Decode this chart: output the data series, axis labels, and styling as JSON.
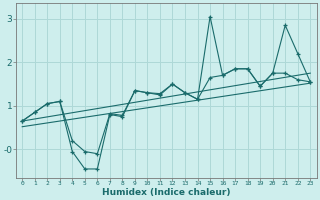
{
  "xlabel": "Humidex (Indice chaleur)",
  "bg_color": "#ceeeed",
  "line_color": "#1a6b6b",
  "grid_color": "#aed8d7",
  "xlim": [
    -0.5,
    23.5
  ],
  "ylim": [
    -0.65,
    3.35
  ],
  "xticks": [
    0,
    1,
    2,
    3,
    4,
    5,
    6,
    7,
    8,
    9,
    10,
    11,
    12,
    13,
    14,
    15,
    16,
    17,
    18,
    19,
    20,
    21,
    22,
    23
  ],
  "yticks": [
    0.0,
    1.0,
    2.0,
    3.0
  ],
  "ytick_labels": [
    "-0",
    "1",
    "2",
    "3"
  ],
  "line1_x": [
    0,
    1,
    2,
    3,
    4,
    5,
    6,
    7,
    8,
    9,
    10,
    11,
    12,
    13,
    14,
    15,
    16,
    17,
    18,
    19,
    20,
    21,
    22,
    23
  ],
  "line1_y": [
    0.65,
    0.85,
    1.05,
    1.1,
    -0.05,
    -0.45,
    -0.45,
    0.8,
    0.75,
    1.35,
    1.3,
    1.25,
    1.5,
    1.3,
    1.15,
    3.05,
    1.7,
    1.85,
    1.85,
    1.45,
    1.75,
    2.85,
    2.2,
    1.55
  ],
  "line2_x": [
    0,
    1,
    2,
    3,
    4,
    5,
    6,
    7,
    8,
    9,
    10,
    11,
    12,
    13,
    14,
    15,
    16,
    17,
    18,
    19,
    20,
    21,
    22,
    23
  ],
  "line2_y": [
    0.65,
    0.85,
    1.05,
    1.1,
    0.2,
    -0.05,
    -0.1,
    0.82,
    0.78,
    1.35,
    1.3,
    1.28,
    1.5,
    1.3,
    1.15,
    1.65,
    1.7,
    1.85,
    1.85,
    1.45,
    1.75,
    1.75,
    1.6,
    1.55
  ],
  "line3_x": [
    0,
    23
  ],
  "line3_y": [
    0.52,
    1.52
  ],
  "line4_x": [
    0,
    23
  ],
  "line4_y": [
    0.65,
    1.75
  ]
}
